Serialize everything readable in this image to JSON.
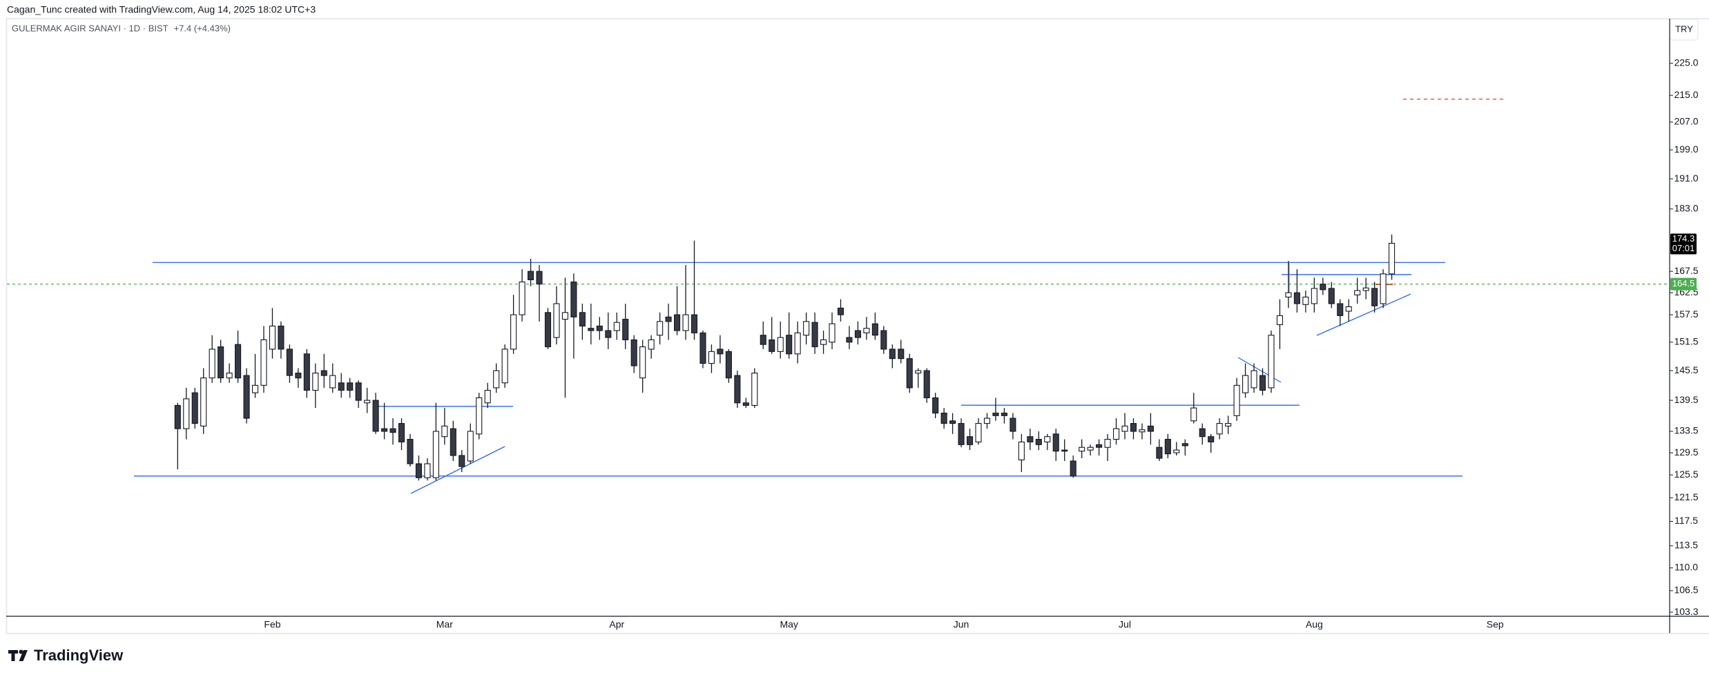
{
  "header": "Cagan_Tunc created with TradingView.com, Aug 14, 2025 18:02 UTC+3",
  "footer": {
    "brand": "TradingView"
  },
  "chart_data": {
    "type": "candlestick",
    "title": "GULERMAK AGIR SANAYI · 1D · BIST",
    "subtitle": "+7.4 (+4.43%)",
    "currency": "TRY",
    "log_scale": true,
    "grid": false,
    "colors": {
      "up": "#ffffff",
      "down": "#363a45",
      "border": "#131722",
      "level": "#4caf50",
      "last": "#000000"
    },
    "ylim": [
      102.7,
      239.7
    ],
    "yticks": [
      {
        "value": 225,
        "label": "225.0"
      },
      {
        "value": 215,
        "label": "215.0"
      },
      {
        "value": 207,
        "label": "207.0"
      },
      {
        "value": 199,
        "label": "199.0"
      },
      {
        "value": 191,
        "label": "191.0"
      },
      {
        "value": 183,
        "label": "183.0"
      },
      167.5,
      162.5,
      157.5,
      151.5,
      145.5,
      139.5,
      133.5,
      129.5,
      125.5,
      121.5,
      117.5,
      113.5,
      {
        "value": 110,
        "label": "110.0"
      },
      106.5,
      103.3
    ],
    "last_price": 174.3,
    "countdown": "07:01",
    "level": 164.5,
    "categories": [
      null,
      null,
      null,
      null,
      null,
      null,
      null,
      null,
      null,
      null,
      null,
      "Feb",
      null,
      null,
      null,
      null,
      null,
      null,
      null,
      null,
      null,
      null,
      null,
      null,
      null,
      null,
      null,
      null,
      null,
      null,
      null,
      "Mar",
      null,
      null,
      null,
      null,
      null,
      null,
      null,
      null,
      null,
      null,
      null,
      null,
      null,
      null,
      null,
      null,
      null,
      null,
      null,
      "Apr",
      null,
      null,
      null,
      null,
      null,
      null,
      null,
      null,
      null,
      null,
      null,
      null,
      null,
      null,
      null,
      null,
      null,
      null,
      null,
      "May",
      null,
      null,
      null,
      null,
      null,
      null,
      null,
      null,
      null,
      null,
      null,
      null,
      null,
      null,
      null,
      null,
      null,
      null,
      null,
      "Jun",
      null,
      null,
      null,
      null,
      null,
      null,
      null,
      null,
      null,
      null,
      null,
      null,
      null,
      null,
      null,
      null,
      null,
      null,
      "Jul",
      null,
      null,
      null,
      null,
      null,
      null,
      null,
      null,
      null,
      null,
      null,
      null,
      null,
      null,
      null,
      null,
      null,
      null,
      null,
      null,
      null,
      "Aug",
      null,
      null,
      null,
      null,
      null,
      null,
      null,
      null,
      null,
      null,
      null,
      null,
      null,
      null,
      null,
      null,
      null,
      null,
      null,
      null,
      "Sep"
    ],
    "ohlc": [
      [
        138.5,
        139,
        126.5,
        134
      ],
      [
        134,
        142,
        132,
        139.8
      ],
      [
        141,
        142,
        134,
        135
      ],
      [
        134.5,
        146,
        133,
        144
      ],
      [
        144,
        153,
        143,
        150
      ],
      [
        150.5,
        152,
        143,
        144
      ],
      [
        144,
        147,
        143,
        145
      ],
      [
        151,
        154,
        143,
        144
      ],
      [
        144.5,
        146,
        135,
        136
      ],
      [
        141,
        149,
        140,
        142.5
      ],
      [
        142.5,
        155,
        141,
        152
      ],
      [
        150,
        159,
        148,
        155
      ],
      [
        155,
        156,
        148,
        150
      ],
      [
        150,
        151,
        143,
        144.5
      ],
      [
        145,
        146,
        142,
        144
      ],
      [
        149,
        150,
        140,
        141.5
      ],
      [
        141.5,
        147,
        138,
        145
      ],
      [
        145.5,
        149,
        142,
        144.5
      ],
      [
        142,
        147,
        141,
        144.5
      ],
      [
        143,
        145,
        140,
        141.5
      ],
      [
        143,
        144,
        140,
        141.5
      ],
      [
        143,
        143.5,
        138,
        139.5
      ],
      [
        139,
        142,
        137,
        139.5
      ],
      [
        139.5,
        141,
        133,
        133.5
      ],
      [
        134,
        139,
        132,
        133.5
      ],
      [
        134,
        136,
        131,
        133.3
      ],
      [
        135,
        136,
        130,
        131.5
      ],
      [
        132,
        133,
        127,
        127.5
      ],
      [
        127.5,
        129,
        124.5,
        125
      ],
      [
        125,
        128.5,
        124.5,
        127.5
      ],
      [
        125,
        139,
        124.5,
        133.5
      ],
      [
        132.5,
        138,
        131,
        134.5
      ],
      [
        134,
        135.5,
        128,
        129
      ],
      [
        129,
        130,
        126,
        127
      ],
      [
        128,
        135,
        127.5,
        133.5
      ],
      [
        133,
        141,
        132,
        140
      ],
      [
        139,
        143,
        138,
        141.5
      ],
      [
        142,
        147,
        141,
        145.5
      ],
      [
        143,
        151,
        142,
        150
      ],
      [
        150,
        162,
        149,
        157.5
      ],
      [
        157.5,
        168,
        156,
        165
      ],
      [
        167.5,
        170.5,
        164,
        165.5
      ],
      [
        167.5,
        169,
        156,
        164.5
      ],
      [
        158,
        159,
        150,
        150.5
      ],
      [
        152.5,
        164,
        151,
        160
      ],
      [
        156.5,
        166,
        140,
        158
      ],
      [
        165,
        167,
        148,
        157
      ],
      [
        158,
        160,
        152,
        155
      ],
      [
        154.5,
        160,
        151,
        154
      ],
      [
        155,
        157,
        152,
        154
      ],
      [
        154,
        158,
        150,
        152.5
      ],
      [
        154,
        158,
        152,
        155.8
      ],
      [
        156.5,
        160,
        150,
        152
      ],
      [
        152,
        153,
        145,
        146.5
      ],
      [
        144,
        152,
        141,
        150.5
      ],
      [
        150,
        153,
        148,
        152
      ],
      [
        153,
        158,
        151,
        156
      ],
      [
        157,
        160,
        152,
        156
      ],
      [
        157.5,
        164,
        153,
        154
      ],
      [
        154,
        169,
        152,
        157.5
      ],
      [
        157.5,
        175,
        152,
        153.5
      ],
      [
        153.5,
        154,
        146,
        147
      ],
      [
        147,
        151,
        145,
        149.5
      ],
      [
        150,
        153,
        147,
        149
      ],
      [
        149.5,
        150,
        143,
        144
      ],
      [
        144.5,
        145.5,
        138,
        139
      ],
      [
        139,
        140,
        138,
        138.5
      ],
      [
        138.5,
        146,
        138,
        145
      ],
      [
        153,
        156,
        150,
        151
      ],
      [
        152,
        157,
        149,
        149.5
      ],
      [
        149.5,
        156,
        148,
        152.5
      ],
      [
        153,
        158,
        148,
        149
      ],
      [
        149,
        156,
        147,
        153.5
      ],
      [
        153,
        158,
        151,
        156
      ],
      [
        155.8,
        158,
        149,
        150.5
      ],
      [
        151,
        154,
        149,
        152
      ],
      [
        151.5,
        158,
        150,
        155.5
      ],
      [
        159,
        161,
        156,
        157.5
      ],
      [
        152.5,
        155,
        150,
        151.5
      ],
      [
        154,
        156,
        151,
        152.5
      ],
      [
        153.5,
        157,
        152,
        154.5
      ],
      [
        155.5,
        158,
        152,
        153
      ],
      [
        154,
        155,
        149,
        150
      ],
      [
        150,
        151,
        146,
        148
      ],
      [
        150,
        152,
        147,
        148
      ],
      [
        148,
        149,
        141,
        142
      ],
      [
        145,
        146,
        142,
        145.5
      ],
      [
        145.5,
        146,
        139,
        140
      ],
      [
        140,
        141,
        136,
        137
      ],
      [
        137,
        138,
        134,
        135
      ],
      [
        135.5,
        137,
        133,
        135
      ],
      [
        135,
        136,
        130.5,
        131
      ],
      [
        132.5,
        134,
        130,
        131
      ],
      [
        131.5,
        136,
        131,
        135
      ],
      [
        135,
        137,
        134,
        136
      ],
      [
        137,
        140,
        135.5,
        136.5
      ],
      [
        137,
        138,
        135,
        136.5
      ],
      [
        136,
        137,
        132,
        133.5
      ],
      [
        128.2,
        133,
        126,
        131.5
      ],
      [
        132.5,
        134,
        130,
        131.5
      ],
      [
        132,
        133.5,
        130,
        131
      ],
      [
        131.5,
        133,
        130,
        132.5
      ],
      [
        133,
        134,
        128,
        129.8
      ],
      [
        130,
        132,
        128,
        129.8
      ],
      [
        128,
        129,
        125,
        125.3
      ],
      [
        129.8,
        132,
        128.5,
        130.5
      ],
      [
        130,
        131,
        129,
        130.5
      ],
      [
        131,
        132,
        129,
        130.5
      ],
      [
        130.5,
        133,
        128,
        132
      ],
      [
        132,
        136,
        131,
        134
      ],
      [
        133.5,
        137,
        132,
        134.5
      ],
      [
        135,
        136,
        132,
        133.5
      ],
      [
        133.4,
        135,
        132,
        133.8
      ],
      [
        134.5,
        137,
        131,
        133.5
      ],
      [
        130.5,
        132,
        128,
        128.5
      ],
      [
        132,
        133,
        128.5,
        129.3
      ],
      [
        129.5,
        131.5,
        129,
        130
      ],
      [
        131.2,
        132,
        129,
        130.8
      ],
      [
        135.5,
        141,
        135,
        138
      ],
      [
        134,
        135,
        131,
        132.5
      ],
      [
        132.5,
        133,
        129.5,
        131.5
      ],
      [
        133,
        136,
        132,
        135
      ],
      [
        134.5,
        136.5,
        133,
        135
      ],
      [
        136.5,
        144,
        135.5,
        142.5
      ],
      [
        141,
        147,
        140,
        144.5
      ],
      [
        142,
        147,
        141,
        145.5
      ],
      [
        144.5,
        146,
        140.5,
        141.5
      ],
      [
        142,
        154,
        141,
        153
      ],
      [
        155.3,
        161,
        150,
        157.3
      ],
      [
        161.5,
        170,
        159,
        162.5
      ],
      [
        162.5,
        168,
        158,
        160
      ],
      [
        159.8,
        163,
        158,
        161.5
      ],
      [
        160,
        166,
        158,
        163.5
      ],
      [
        164.5,
        166,
        162,
        163.2
      ],
      [
        163.5,
        165,
        159,
        160
      ],
      [
        160,
        161,
        155,
        157.3
      ],
      [
        158.3,
        161,
        156,
        159.3
      ],
      [
        162,
        166,
        160,
        163
      ],
      [
        163,
        166,
        161,
        163.6
      ],
      [
        163.5,
        165,
        158,
        159.5
      ],
      [
        160,
        168,
        159,
        166.9
      ],
      [
        166.9,
        176.5,
        165.5,
        174.3
      ],
      null,
      null,
      null,
      null,
      null,
      null,
      null,
      null,
      null,
      null,
      null,
      null
    ]
  }
}
